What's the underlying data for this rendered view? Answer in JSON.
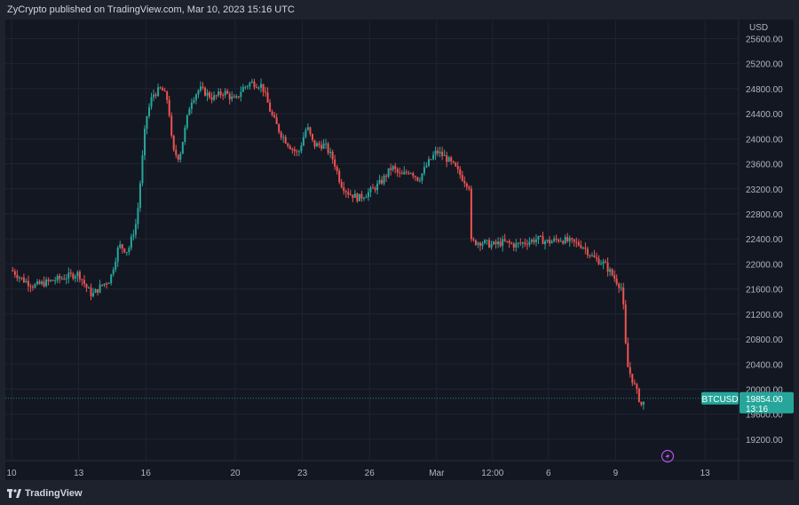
{
  "header": {
    "publisher_text": "ZyCrypto published on TradingView.com, Mar 10, 2023 15:16 UTC"
  },
  "footer": {
    "brand": "TradingView"
  },
  "colors": {
    "up": "#26a69a",
    "down": "#ef5350",
    "background": "#131722",
    "grid": "#1f2433",
    "last_price": "#26a69a"
  },
  "icons": {
    "brand": "tradingview-logo-icon",
    "event": "lightning-icon"
  },
  "chart_data": {
    "type": "candlestick",
    "symbol": "BTCUSD",
    "currency": "USD",
    "last_price": "19854.00",
    "countdown": "13:16",
    "ylim": [
      19000,
      25800
    ],
    "y_ticks": [
      25600,
      25200,
      24800,
      24400,
      24000,
      23600,
      23200,
      22800,
      22400,
      22000,
      21600,
      21200,
      20800,
      20400,
      20000,
      19600,
      19200
    ],
    "y_tick_labels": [
      "25600.00",
      "25200.00",
      "24800.00",
      "24400.00",
      "24000.00",
      "23600.00",
      "23200.00",
      "22800.00",
      "22400.00",
      "22000.00",
      "21600.00",
      "21200.00",
      "20800.00",
      "20400.00",
      "20000.00",
      "19600.00",
      "19200.00"
    ],
    "x_ticks": [
      {
        "label": "10",
        "t": 0
      },
      {
        "label": "13",
        "t": 3
      },
      {
        "label": "16",
        "t": 6
      },
      {
        "label": "20",
        "t": 10
      },
      {
        "label": "23",
        "t": 13
      },
      {
        "label": "26",
        "t": 16
      },
      {
        "label": "Mar",
        "t": 19
      },
      {
        "label": "12:00",
        "t": 21.5
      },
      {
        "label": "6",
        "t": 24
      },
      {
        "label": "9",
        "t": 27
      },
      {
        "label": "13",
        "t": 31
      }
    ],
    "xlim": [
      -0.2,
      32.5
    ],
    "price_path": [
      [
        0,
        21900
      ],
      [
        0.5,
        21750
      ],
      [
        1,
        21650
      ],
      [
        1.5,
        21700
      ],
      [
        2,
        21750
      ],
      [
        2.5,
        21800
      ],
      [
        3,
        21850
      ],
      [
        3.3,
        21650
      ],
      [
        3.6,
        21500
      ],
      [
        4,
        21650
      ],
      [
        4.4,
        21750
      ],
      [
        4.8,
        22300
      ],
      [
        5.2,
        22200
      ],
      [
        5.6,
        22700
      ],
      [
        6,
        24300
      ],
      [
        6.3,
        24700
      ],
      [
        6.7,
        24800
      ],
      [
        7,
        24600
      ],
      [
        7.2,
        23800
      ],
      [
        7.5,
        23700
      ],
      [
        8,
        24600
      ],
      [
        8.4,
        24800
      ],
      [
        9,
        24650
      ],
      [
        9.5,
        24750
      ],
      [
        10,
        24600
      ],
      [
        10.3,
        24800
      ],
      [
        10.7,
        24900
      ],
      [
        11.2,
        24850
      ],
      [
        11.6,
        24400
      ],
      [
        12,
        24100
      ],
      [
        12.4,
        23900
      ],
      [
        12.8,
        23750
      ],
      [
        13.2,
        24200
      ],
      [
        13.5,
        23900
      ],
      [
        14,
        23900
      ],
      [
        14.4,
        23650
      ],
      [
        14.7,
        23300
      ],
      [
        15,
        23150
      ],
      [
        15.5,
        23050
      ],
      [
        16,
        23150
      ],
      [
        16.5,
        23300
      ],
      [
        17,
        23550
      ],
      [
        17.4,
        23400
      ],
      [
        17.8,
        23500
      ],
      [
        18.2,
        23350
      ],
      [
        18.6,
        23600
      ],
      [
        19,
        23800
      ],
      [
        19.4,
        23700
      ],
      [
        19.8,
        23550
      ],
      [
        20.2,
        23350
      ],
      [
        20.45,
        23250
      ],
      [
        20.55,
        22350
      ],
      [
        21,
        22350
      ],
      [
        21.5,
        22300
      ],
      [
        22,
        22350
      ],
      [
        22.5,
        22300
      ],
      [
        23,
        22350
      ],
      [
        23.5,
        22400
      ],
      [
        24,
        22350
      ],
      [
        24.5,
        22400
      ],
      [
        25,
        22350
      ],
      [
        25.5,
        22300
      ],
      [
        26,
        22100
      ],
      [
        26.5,
        22000
      ],
      [
        27,
        21750
      ],
      [
        27.3,
        21600
      ],
      [
        27.5,
        20400
      ],
      [
        27.8,
        20100
      ],
      [
        28,
        19900
      ],
      [
        28.2,
        19700
      ],
      [
        28.3,
        19854
      ]
    ]
  }
}
